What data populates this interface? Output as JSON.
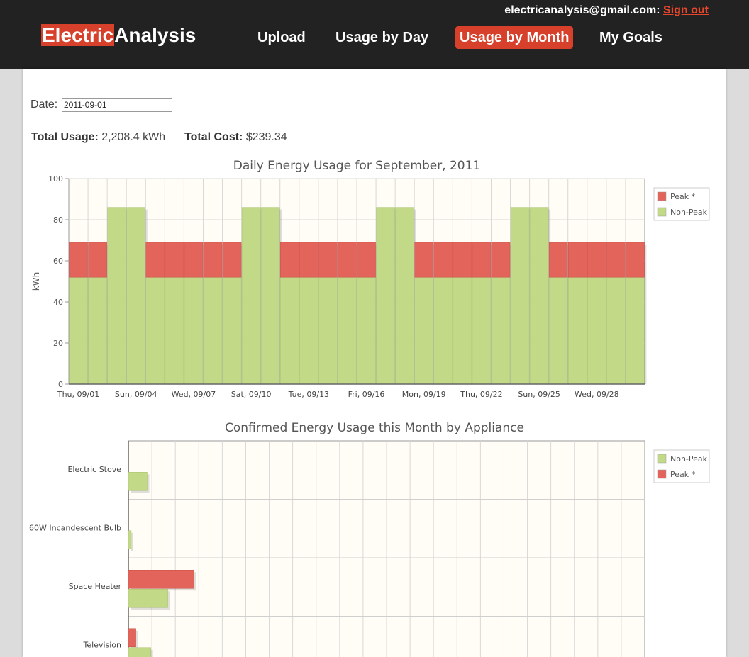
{
  "header": {
    "account_email": "electricanalysis@gmail.com:",
    "sign_out_label": "Sign out",
    "logo_part1": "Electric",
    "logo_part2": "Analysis",
    "nav": [
      {
        "label": "Upload",
        "active": false
      },
      {
        "label": "Usage by Day",
        "active": false
      },
      {
        "label": "Usage by Month",
        "active": true
      },
      {
        "label": "My Goals",
        "active": false
      }
    ]
  },
  "form": {
    "date_label": "Date:",
    "date_value": "2011-09-01"
  },
  "totals": {
    "usage_label": "Total Usage:",
    "usage_value": "2,208.4 kWh",
    "cost_label": "Total Cost:",
    "cost_value": "$239.34"
  },
  "colors": {
    "peak": "#e2645a",
    "non_peak": "#c2da87",
    "accent": "#d7402a",
    "header_bg": "#222222"
  },
  "chart_data": [
    {
      "type": "bar",
      "stacked": true,
      "title": "Daily Energy Usage for September, 2011",
      "xlabel": "",
      "ylabel": "kWh",
      "ylim": [
        0,
        100
      ],
      "yticks": [
        0,
        20,
        40,
        60,
        80,
        100
      ],
      "grid": true,
      "legend": "top-right",
      "categories": [
        "09/01",
        "09/02",
        "09/03",
        "09/04",
        "09/05",
        "09/06",
        "09/07",
        "09/08",
        "09/09",
        "09/10",
        "09/11",
        "09/12",
        "09/13",
        "09/14",
        "09/15",
        "09/16",
        "09/17",
        "09/18",
        "09/19",
        "09/20",
        "09/21",
        "09/22",
        "09/23",
        "09/24",
        "09/25",
        "09/26",
        "09/27",
        "09/28",
        "09/29",
        "09/30"
      ],
      "tick_labels": [
        {
          "index": 0,
          "label": "Thu, 09/01"
        },
        {
          "index": 3,
          "label": "Sun, 09/04"
        },
        {
          "index": 6,
          "label": "Wed, 09/07"
        },
        {
          "index": 9,
          "label": "Sat, 09/10"
        },
        {
          "index": 12,
          "label": "Tue, 09/13"
        },
        {
          "index": 15,
          "label": "Fri, 09/16"
        },
        {
          "index": 18,
          "label": "Mon, 09/19"
        },
        {
          "index": 21,
          "label": "Thu, 09/22"
        },
        {
          "index": 24,
          "label": "Sun, 09/25"
        },
        {
          "index": 27,
          "label": "Wed, 09/28"
        }
      ],
      "series": [
        {
          "name": "Non-Peak",
          "color": "#c2da87",
          "values": [
            52,
            52,
            86,
            86,
            52,
            52,
            52,
            52,
            52,
            86,
            86,
            52,
            52,
            52,
            52,
            52,
            86,
            86,
            52,
            52,
            52,
            52,
            52,
            86,
            86,
            52,
            52,
            52,
            52,
            52
          ]
        },
        {
          "name": "Peak *",
          "color": "#e2645a",
          "values": [
            17,
            17,
            0,
            0,
            17,
            17,
            17,
            17,
            17,
            0,
            0,
            17,
            17,
            17,
            17,
            17,
            0,
            0,
            17,
            17,
            17,
            17,
            17,
            0,
            0,
            17,
            17,
            17,
            17,
            17
          ]
        }
      ],
      "legend_entries": [
        "Peak *",
        "Non-Peak"
      ]
    },
    {
      "type": "bar",
      "orientation": "horizontal",
      "title": "Confirmed Energy Usage this Month by Appliance",
      "grid": true,
      "legend": "top-right",
      "categories": [
        "Electric Stove",
        "60W Incandescent Bulb",
        "Space Heater",
        "Television"
      ],
      "series": [
        {
          "name": "Peak *",
          "color": "#e2645a",
          "values": [
            0,
            0,
            35,
            4
          ]
        },
        {
          "name": "Non-Peak",
          "color": "#c2da87",
          "values": [
            10,
            1.5,
            21,
            12
          ]
        }
      ],
      "xlim": [
        0,
        275
      ],
      "legend_entries": [
        "Non-Peak",
        "Peak *"
      ]
    }
  ]
}
